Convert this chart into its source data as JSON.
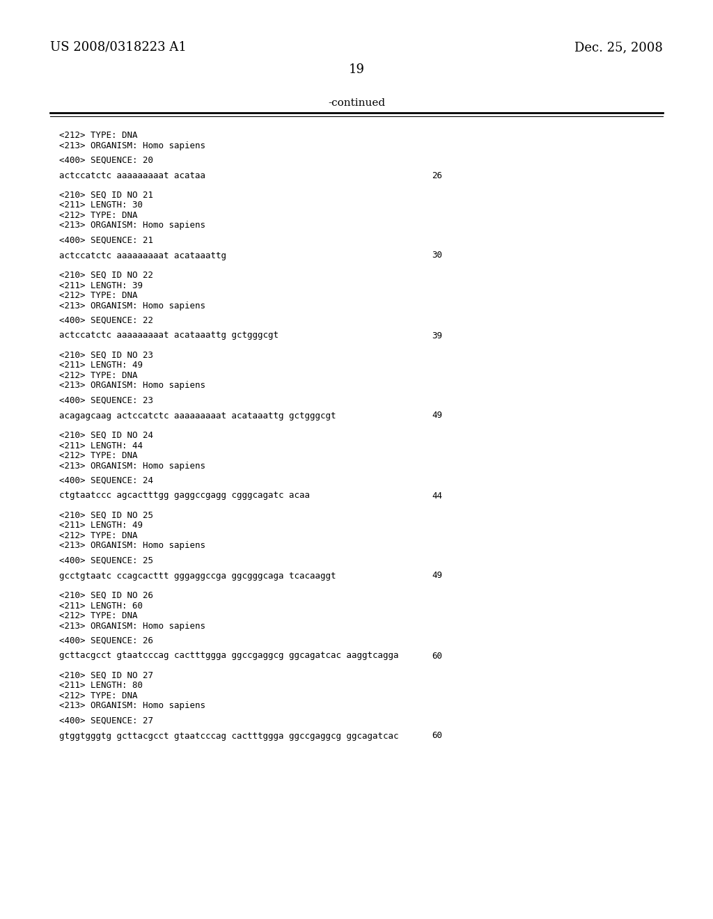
{
  "bg_color": "#ffffff",
  "header_left": "US 2008/0318223 A1",
  "header_right": "Dec. 25, 2008",
  "page_number": "19",
  "continued_label": "-continued",
  "content_lines": [
    {
      "text": "<212> TYPE: DNA",
      "type": "meta"
    },
    {
      "text": "<213> ORGANISM: Homo sapiens",
      "type": "meta"
    },
    {
      "text": "",
      "type": "blank"
    },
    {
      "text": "<400> SEQUENCE: 20",
      "type": "meta"
    },
    {
      "text": "",
      "type": "blank"
    },
    {
      "text": "actccatctc aaaaaaaaat acataa",
      "type": "seq",
      "num": "26"
    },
    {
      "text": "",
      "type": "blank"
    },
    {
      "text": "",
      "type": "blank"
    },
    {
      "text": "<210> SEQ ID NO 21",
      "type": "meta"
    },
    {
      "text": "<211> LENGTH: 30",
      "type": "meta"
    },
    {
      "text": "<212> TYPE: DNA",
      "type": "meta"
    },
    {
      "text": "<213> ORGANISM: Homo sapiens",
      "type": "meta"
    },
    {
      "text": "",
      "type": "blank"
    },
    {
      "text": "<400> SEQUENCE: 21",
      "type": "meta"
    },
    {
      "text": "",
      "type": "blank"
    },
    {
      "text": "actccatctc aaaaaaaaat acataaattg",
      "type": "seq",
      "num": "30"
    },
    {
      "text": "",
      "type": "blank"
    },
    {
      "text": "",
      "type": "blank"
    },
    {
      "text": "<210> SEQ ID NO 22",
      "type": "meta"
    },
    {
      "text": "<211> LENGTH: 39",
      "type": "meta"
    },
    {
      "text": "<212> TYPE: DNA",
      "type": "meta"
    },
    {
      "text": "<213> ORGANISM: Homo sapiens",
      "type": "meta"
    },
    {
      "text": "",
      "type": "blank"
    },
    {
      "text": "<400> SEQUENCE: 22",
      "type": "meta"
    },
    {
      "text": "",
      "type": "blank"
    },
    {
      "text": "actccatctc aaaaaaaaat acataaattg gctgggcgt",
      "type": "seq",
      "num": "39"
    },
    {
      "text": "",
      "type": "blank"
    },
    {
      "text": "",
      "type": "blank"
    },
    {
      "text": "<210> SEQ ID NO 23",
      "type": "meta"
    },
    {
      "text": "<211> LENGTH: 49",
      "type": "meta"
    },
    {
      "text": "<212> TYPE: DNA",
      "type": "meta"
    },
    {
      "text": "<213> ORGANISM: Homo sapiens",
      "type": "meta"
    },
    {
      "text": "",
      "type": "blank"
    },
    {
      "text": "<400> SEQUENCE: 23",
      "type": "meta"
    },
    {
      "text": "",
      "type": "blank"
    },
    {
      "text": "acagagcaag actccatctc aaaaaaaaat acataaattg gctgggcgt",
      "type": "seq",
      "num": "49"
    },
    {
      "text": "",
      "type": "blank"
    },
    {
      "text": "",
      "type": "blank"
    },
    {
      "text": "<210> SEQ ID NO 24",
      "type": "meta"
    },
    {
      "text": "<211> LENGTH: 44",
      "type": "meta"
    },
    {
      "text": "<212> TYPE: DNA",
      "type": "meta"
    },
    {
      "text": "<213> ORGANISM: Homo sapiens",
      "type": "meta"
    },
    {
      "text": "",
      "type": "blank"
    },
    {
      "text": "<400> SEQUENCE: 24",
      "type": "meta"
    },
    {
      "text": "",
      "type": "blank"
    },
    {
      "text": "ctgtaatccc agcactttgg gaggccgagg cgggcagatc acaa",
      "type": "seq",
      "num": "44"
    },
    {
      "text": "",
      "type": "blank"
    },
    {
      "text": "",
      "type": "blank"
    },
    {
      "text": "<210> SEQ ID NO 25",
      "type": "meta"
    },
    {
      "text": "<211> LENGTH: 49",
      "type": "meta"
    },
    {
      "text": "<212> TYPE: DNA",
      "type": "meta"
    },
    {
      "text": "<213> ORGANISM: Homo sapiens",
      "type": "meta"
    },
    {
      "text": "",
      "type": "blank"
    },
    {
      "text": "<400> SEQUENCE: 25",
      "type": "meta"
    },
    {
      "text": "",
      "type": "blank"
    },
    {
      "text": "gcctgtaatc ccagcacttt gggaggccga ggcgggcaga tcacaaggt",
      "type": "seq",
      "num": "49"
    },
    {
      "text": "",
      "type": "blank"
    },
    {
      "text": "",
      "type": "blank"
    },
    {
      "text": "<210> SEQ ID NO 26",
      "type": "meta"
    },
    {
      "text": "<211> LENGTH: 60",
      "type": "meta"
    },
    {
      "text": "<212> TYPE: DNA",
      "type": "meta"
    },
    {
      "text": "<213> ORGANISM: Homo sapiens",
      "type": "meta"
    },
    {
      "text": "",
      "type": "blank"
    },
    {
      "text": "<400> SEQUENCE: 26",
      "type": "meta"
    },
    {
      "text": "",
      "type": "blank"
    },
    {
      "text": "gcttacgcct gtaatcccag cactttggga ggccgaggcg ggcagatcac aaggtcagga",
      "type": "seq",
      "num": "60"
    },
    {
      "text": "",
      "type": "blank"
    },
    {
      "text": "",
      "type": "blank"
    },
    {
      "text": "<210> SEQ ID NO 27",
      "type": "meta"
    },
    {
      "text": "<211> LENGTH: 80",
      "type": "meta"
    },
    {
      "text": "<212> TYPE: DNA",
      "type": "meta"
    },
    {
      "text": "<213> ORGANISM: Homo sapiens",
      "type": "meta"
    },
    {
      "text": "",
      "type": "blank"
    },
    {
      "text": "<400> SEQUENCE: 27",
      "type": "meta"
    },
    {
      "text": "",
      "type": "blank"
    },
    {
      "text": "gtggtgggtg gcttacgcct gtaatcccag cactttggga ggccgaggcg ggcagatcac",
      "type": "seq",
      "num": "60"
    }
  ]
}
